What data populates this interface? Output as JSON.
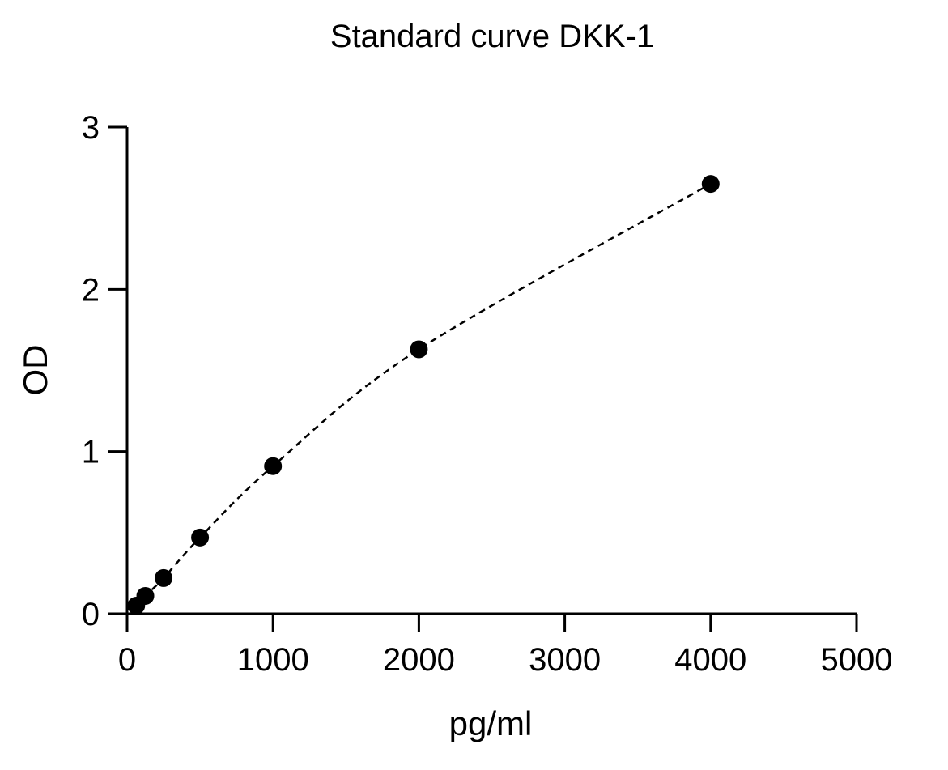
{
  "chart_data": {
    "type": "scatter",
    "title": "Standard curve DKK-1",
    "xlabel": "pg/ml",
    "ylabel": "OD",
    "xlim": [
      0,
      5000
    ],
    "ylim": [
      0,
      3
    ],
    "x_ticks": [
      "0",
      "1000",
      "2000",
      "3000",
      "4000",
      "5000"
    ],
    "y_ticks": [
      "0",
      "1",
      "2",
      "3"
    ],
    "grid": false,
    "legend": "none",
    "series": [
      {
        "x": [
          62.5,
          125,
          250,
          500,
          1000,
          2000,
          4000
        ],
        "y": [
          0.05,
          0.11,
          0.22,
          0.47,
          0.91,
          1.63,
          2.65
        ],
        "fit": "dashed-curve"
      }
    ],
    "color": "#000000"
  }
}
